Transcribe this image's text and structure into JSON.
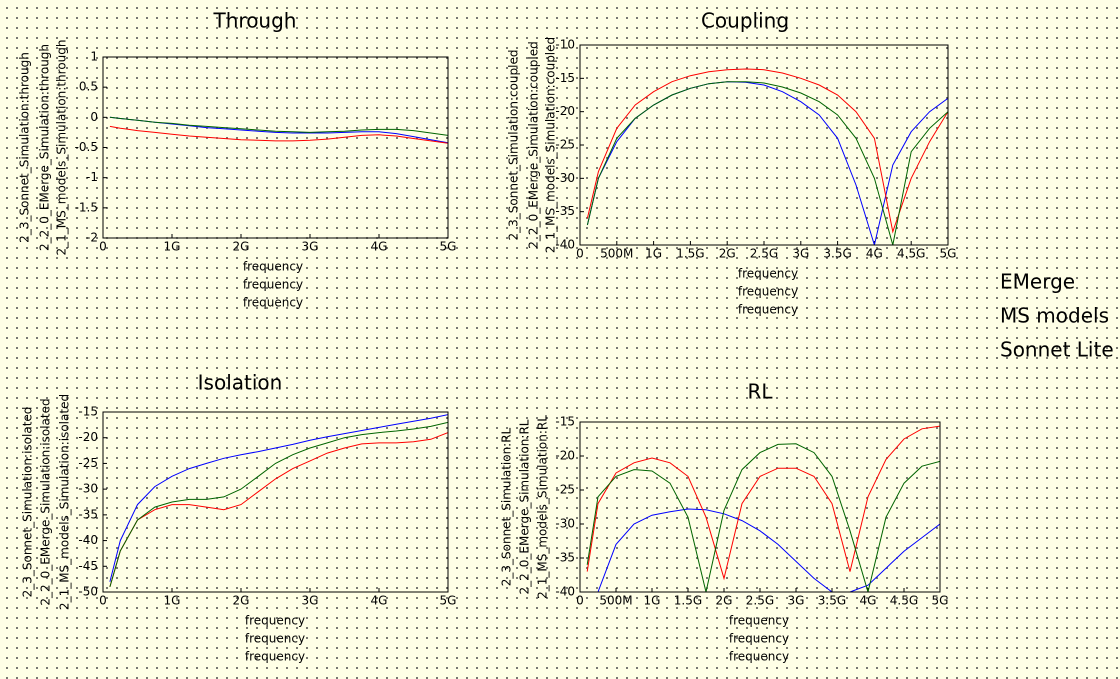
{
  "chart_data": [
    {
      "type": "line",
      "title": "Through",
      "x": [
        100000000,
        250000000,
        500000000,
        750000000,
        1000000000,
        1250000000,
        1500000000,
        1750000000,
        2000000000,
        2250000000,
        2500000000,
        2750000000,
        3000000000,
        3250000000,
        3500000000,
        3750000000,
        4000000000,
        4250000000,
        4500000000,
        4750000000,
        5000000000
      ],
      "xlim": [
        0,
        5000000000
      ],
      "xticks": [
        0,
        {
          "value": 1000000000,
          "label": "1G"
        },
        {
          "value": 2000000000,
          "label": "2G"
        },
        {
          "value": 3000000000,
          "label": "3G"
        },
        {
          "value": 4000000000,
          "label": "4G"
        },
        {
          "value": 5000000000,
          "label": "5G"
        }
      ],
      "ylim": [
        -2,
        1
      ],
      "yticks": [
        1,
        0.5,
        0,
        -0.5,
        -1,
        -1.5,
        -2
      ],
      "series": [
        {
          "name": "2_1_MS_models_Simulation:through",
          "color": "#0000ff",
          "xlabel": "frequency",
          "values": [
            0,
            -0.02,
            -0.05,
            -0.08,
            -0.11,
            -0.14,
            -0.17,
            -0.19,
            -0.21,
            -0.23,
            -0.25,
            -0.26,
            -0.26,
            -0.26,
            -0.25,
            -0.24,
            -0.24,
            -0.27,
            -0.32,
            -0.37,
            -0.42
          ]
        },
        {
          "name": "2_2_0_EMerge_Simulation:through",
          "color": "#ff0000",
          "xlabel": "frequency",
          "values": [
            -0.15,
            -0.18,
            -0.22,
            -0.25,
            -0.28,
            -0.31,
            -0.33,
            -0.35,
            -0.37,
            -0.38,
            -0.39,
            -0.39,
            -0.38,
            -0.36,
            -0.33,
            -0.3,
            -0.29,
            -0.31,
            -0.35,
            -0.39,
            -0.43
          ]
        },
        {
          "name": "2_3_Sonnet_Simulation:through",
          "color": "#006400",
          "xlabel": "frequency",
          "values": [
            0,
            -0.02,
            -0.05,
            -0.08,
            -0.1,
            -0.13,
            -0.15,
            -0.17,
            -0.19,
            -0.21,
            -0.23,
            -0.24,
            -0.25,
            -0.24,
            -0.23,
            -0.21,
            -0.2,
            -0.2,
            -0.22,
            -0.26,
            -0.3
          ]
        }
      ]
    },
    {
      "type": "line",
      "title": "Coupling",
      "x": [
        100000000,
        250000000,
        500000000,
        750000000,
        1000000000,
        1250000000,
        1500000000,
        1750000000,
        2000000000,
        2250000000,
        2500000000,
        2750000000,
        3000000000,
        3250000000,
        3500000000,
        3750000000,
        4000000000,
        4250000000,
        4500000000,
        4750000000,
        5000000000
      ],
      "xlim": [
        0,
        5000000000
      ],
      "xticks": [
        0,
        {
          "value": 500000000,
          "label": "500M"
        },
        {
          "value": 1000000000,
          "label": "1G"
        },
        {
          "value": 1500000000,
          "label": "1.5G"
        },
        {
          "value": 2000000000,
          "label": "2G"
        },
        {
          "value": 2500000000,
          "label": "2.5G"
        },
        {
          "value": 3000000000,
          "label": "3G"
        },
        {
          "value": 3500000000,
          "label": "3.5G"
        },
        {
          "value": 4000000000,
          "label": "4G"
        },
        {
          "value": 4500000000,
          "label": "4.5G"
        },
        {
          "value": 5000000000,
          "label": "5G"
        }
      ],
      "ylim": [
        -40,
        -10
      ],
      "yticks": [
        -10,
        -15,
        -20,
        -25,
        -30,
        -35,
        -40
      ],
      "series": [
        {
          "name": "2_1_MS_models_Simulation:coupled",
          "color": "#0000ff",
          "xlabel": "frequency",
          "values": [
            -37,
            -30,
            -24.5,
            -21,
            -19,
            -17.5,
            -16.5,
            -15.8,
            -15.5,
            -15.6,
            -16,
            -17,
            -18.5,
            -20.5,
            -24,
            -31,
            -40,
            -28,
            -23,
            -20,
            -18
          ]
        },
        {
          "name": "2_2_0_EMerge_Simulation:coupled",
          "color": "#ff0000",
          "xlabel": "frequency",
          "values": [
            -36,
            -29,
            -22.5,
            -19,
            -17,
            -15.5,
            -14.6,
            -14,
            -13.7,
            -13.6,
            -13.7,
            -14.2,
            -15,
            -16,
            -17.5,
            -20,
            -24,
            -38,
            -30,
            -24.5,
            -20
          ]
        },
        {
          "name": "2_3_Sonnet_Simulation:coupled",
          "color": "#006400",
          "xlabel": "frequency",
          "values": [
            -37,
            -30,
            -24,
            -21,
            -19,
            -17.5,
            -16.5,
            -15.8,
            -15.5,
            -15.5,
            -15.7,
            -16.3,
            -17.2,
            -18.5,
            -20.5,
            -24,
            -30,
            -40,
            -26,
            -22.5,
            -20
          ]
        }
      ]
    },
    {
      "type": "line",
      "title": "Isolation",
      "x": [
        100000000,
        250000000,
        500000000,
        750000000,
        1000000000,
        1250000000,
        1500000000,
        1750000000,
        2000000000,
        2250000000,
        2500000000,
        2750000000,
        3000000000,
        3250000000,
        3500000000,
        3750000000,
        4000000000,
        4250000000,
        4500000000,
        4750000000,
        5000000000
      ],
      "xlim": [
        0,
        5000000000
      ],
      "xticks": [
        0,
        {
          "value": 1000000000,
          "label": "1G"
        },
        {
          "value": 2000000000,
          "label": "2G"
        },
        {
          "value": 3000000000,
          "label": "3G"
        },
        {
          "value": 4000000000,
          "label": "4G"
        },
        {
          "value": 5000000000,
          "label": "5G"
        }
      ],
      "ylim": [
        -50,
        -15
      ],
      "yticks": [
        -15,
        -20,
        -25,
        -30,
        -35,
        -40,
        -45,
        -50
      ],
      "series": [
        {
          "name": "2_1_MS_models_Simulation:isolated",
          "color": "#0000ff",
          "xlabel": "frequency",
          "values": [
            -48,
            -40,
            -33,
            -29.5,
            -27.5,
            -26,
            -25,
            -24,
            -23.3,
            -22.7,
            -22,
            -21.3,
            -20.5,
            -19.8,
            -19.2,
            -18.6,
            -18,
            -17.4,
            -16.8,
            -16.2,
            -15.5
          ]
        },
        {
          "name": "2_2_0_EMerge_Simulation:isolated",
          "color": "#ff0000",
          "xlabel": "frequency",
          "values": [
            -49,
            -42,
            -36,
            -34,
            -33,
            -33,
            -33.5,
            -34,
            -33,
            -30.5,
            -28,
            -26,
            -24.5,
            -23,
            -22,
            -21.2,
            -21,
            -21,
            -20.8,
            -20.3,
            -19
          ]
        },
        {
          "name": "2_3_Sonnet_Simulation:isolated",
          "color": "#006400",
          "xlabel": "frequency",
          "values": [
            -49,
            -42,
            -36,
            -33.5,
            -32.5,
            -32,
            -32,
            -31.5,
            -30,
            -27.5,
            -25,
            -23.3,
            -22,
            -21,
            -20,
            -19.4,
            -19,
            -18.7,
            -18.3,
            -17.8,
            -17
          ]
        }
      ]
    },
    {
      "type": "line",
      "title": "RL",
      "x": [
        100000000,
        250000000,
        500000000,
        750000000,
        1000000000,
        1250000000,
        1500000000,
        1750000000,
        2000000000,
        2250000000,
        2500000000,
        2750000000,
        3000000000,
        3250000000,
        3500000000,
        3750000000,
        4000000000,
        4250000000,
        4500000000,
        4750000000,
        5000000000
      ],
      "xlim": [
        0,
        5000000000
      ],
      "xticks": [
        0,
        {
          "value": 500000000,
          "label": "500M"
        },
        {
          "value": 1000000000,
          "label": "1G"
        },
        {
          "value": 1500000000,
          "label": "1.5G"
        },
        {
          "value": 2000000000,
          "label": "2G"
        },
        {
          "value": 2500000000,
          "label": "2.5G"
        },
        {
          "value": 3000000000,
          "label": "3G"
        },
        {
          "value": 3500000000,
          "label": "3.5G"
        },
        {
          "value": 4000000000,
          "label": "4G"
        },
        {
          "value": 4500000000,
          "label": "4.5G"
        },
        {
          "value": 5000000000,
          "label": "5G"
        }
      ],
      "ylim": [
        -40,
        -15
      ],
      "yticks": [
        -15,
        -20,
        -25,
        -30,
        -35,
        -40
      ],
      "series": [
        {
          "name": "2_1_MS_models_Simulation:RL",
          "color": "#0000ff",
          "xlabel": "frequency",
          "values": [
            -40,
            -40,
            -33,
            -30,
            -28.7,
            -28.2,
            -27.8,
            -27.9,
            -28.5,
            -29.5,
            -31,
            -33,
            -35.5,
            -38,
            -40,
            -40,
            -39,
            -36.5,
            -34,
            -32,
            -30
          ]
        },
        {
          "name": "2_2_0_EMerge_Simulation:RL",
          "color": "#ff0000",
          "xlabel": "frequency",
          "values": [
            -37,
            -27,
            -22.5,
            -21,
            -20.3,
            -21,
            -23,
            -29,
            -38,
            -27,
            -23,
            -21.8,
            -21.8,
            -23,
            -27,
            -37,
            -26,
            -20.5,
            -17.5,
            -16,
            -15.6
          ]
        },
        {
          "name": "2_3_Sonnet_Simulation:RL",
          "color": "#006400",
          "xlabel": "frequency",
          "values": [
            -36,
            -26,
            -23,
            -22,
            -22.2,
            -24,
            -29,
            -40,
            -28,
            -22,
            -19.5,
            -18.3,
            -18.2,
            -19.5,
            -23,
            -31,
            -40,
            -29,
            -24,
            -21.5,
            -20.8
          ]
        }
      ]
    }
  ],
  "legend": [
    {
      "label": "EMerge",
      "color": "#ff0000"
    },
    {
      "label": "MS models",
      "color": "#0000ff"
    },
    {
      "label": "Sonnet Lite",
      "color": "#006400"
    }
  ]
}
